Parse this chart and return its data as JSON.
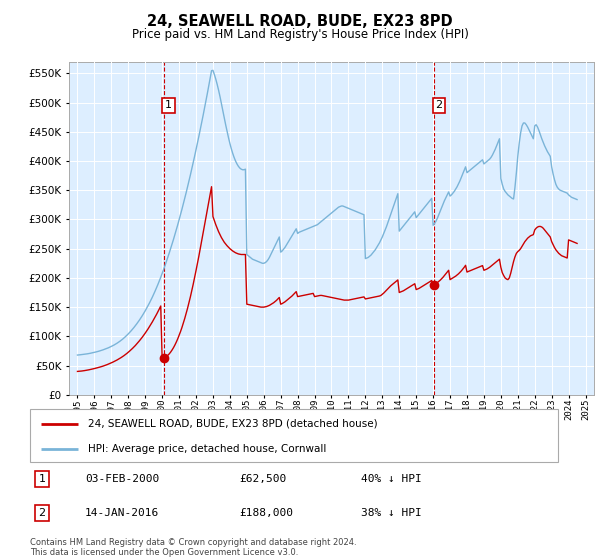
{
  "title": "24, SEAWELL ROAD, BUDE, EX23 8PD",
  "subtitle": "Price paid vs. HM Land Registry's House Price Index (HPI)",
  "hpi_label": "HPI: Average price, detached house, Cornwall",
  "property_label": "24, SEAWELL ROAD, BUDE, EX23 8PD (detached house)",
  "footnote": "Contains HM Land Registry data © Crown copyright and database right 2024.\nThis data is licensed under the Open Government Licence v3.0.",
  "sale1": {
    "date": "03-FEB-2000",
    "price": 62500,
    "pct": "40% ↓ HPI",
    "x": 2000.09
  },
  "sale2": {
    "date": "14-JAN-2016",
    "price": 188000,
    "pct": "38% ↓ HPI",
    "x": 2016.04
  },
  "hpi_color": "#7ab4d8",
  "sale_color": "#cc0000",
  "vline_color": "#cc0000",
  "chart_bg": "#ddeeff",
  "ylim": [
    0,
    570000
  ],
  "yticks": [
    0,
    50000,
    100000,
    150000,
    200000,
    250000,
    300000,
    350000,
    400000,
    450000,
    500000,
    550000
  ],
  "xlim": [
    1994.5,
    2025.5
  ],
  "hpi_x": [
    1995.0,
    1995.083,
    1995.167,
    1995.25,
    1995.333,
    1995.417,
    1995.5,
    1995.583,
    1995.667,
    1995.75,
    1995.833,
    1995.917,
    1996.0,
    1996.083,
    1996.167,
    1996.25,
    1996.333,
    1996.417,
    1996.5,
    1996.583,
    1996.667,
    1996.75,
    1996.833,
    1996.917,
    1997.0,
    1997.083,
    1997.167,
    1997.25,
    1997.333,
    1997.417,
    1997.5,
    1997.583,
    1997.667,
    1997.75,
    1997.833,
    1997.917,
    1998.0,
    1998.083,
    1998.167,
    1998.25,
    1998.333,
    1998.417,
    1998.5,
    1998.583,
    1998.667,
    1998.75,
    1998.833,
    1998.917,
    1999.0,
    1999.083,
    1999.167,
    1999.25,
    1999.333,
    1999.417,
    1999.5,
    1999.583,
    1999.667,
    1999.75,
    1999.833,
    1999.917,
    2000.0,
    2000.083,
    2000.167,
    2000.25,
    2000.333,
    2000.417,
    2000.5,
    2000.583,
    2000.667,
    2000.75,
    2000.833,
    2000.917,
    2001.0,
    2001.083,
    2001.167,
    2001.25,
    2001.333,
    2001.417,
    2001.5,
    2001.583,
    2001.667,
    2001.75,
    2001.833,
    2001.917,
    2002.0,
    2002.083,
    2002.167,
    2002.25,
    2002.333,
    2002.417,
    2002.5,
    2002.583,
    2002.667,
    2002.75,
    2002.833,
    2002.917,
    2003.0,
    2003.083,
    2003.167,
    2003.25,
    2003.333,
    2003.417,
    2003.5,
    2003.583,
    2003.667,
    2003.75,
    2003.833,
    2003.917,
    2004.0,
    2004.083,
    2004.167,
    2004.25,
    2004.333,
    2004.417,
    2004.5,
    2004.583,
    2004.667,
    2004.75,
    2004.833,
    2004.917,
    2005.0,
    2005.083,
    2005.167,
    2005.25,
    2005.333,
    2005.417,
    2005.5,
    2005.583,
    2005.667,
    2005.75,
    2005.833,
    2005.917,
    2006.0,
    2006.083,
    2006.167,
    2006.25,
    2006.333,
    2006.417,
    2006.5,
    2006.583,
    2006.667,
    2006.75,
    2006.833,
    2006.917,
    2007.0,
    2007.083,
    2007.167,
    2007.25,
    2007.333,
    2007.417,
    2007.5,
    2007.583,
    2007.667,
    2007.75,
    2007.833,
    2007.917,
    2008.0,
    2008.083,
    2008.167,
    2008.25,
    2008.333,
    2008.417,
    2008.5,
    2008.583,
    2008.667,
    2008.75,
    2008.833,
    2008.917,
    2009.0,
    2009.083,
    2009.167,
    2009.25,
    2009.333,
    2009.417,
    2009.5,
    2009.583,
    2009.667,
    2009.75,
    2009.833,
    2009.917,
    2010.0,
    2010.083,
    2010.167,
    2010.25,
    2010.333,
    2010.417,
    2010.5,
    2010.583,
    2010.667,
    2010.75,
    2010.833,
    2010.917,
    2011.0,
    2011.083,
    2011.167,
    2011.25,
    2011.333,
    2011.417,
    2011.5,
    2011.583,
    2011.667,
    2011.75,
    2011.833,
    2011.917,
    2012.0,
    2012.083,
    2012.167,
    2012.25,
    2012.333,
    2012.417,
    2012.5,
    2012.583,
    2012.667,
    2012.75,
    2012.833,
    2012.917,
    2013.0,
    2013.083,
    2013.167,
    2013.25,
    2013.333,
    2013.417,
    2013.5,
    2013.583,
    2013.667,
    2013.75,
    2013.833,
    2013.917,
    2014.0,
    2014.083,
    2014.167,
    2014.25,
    2014.333,
    2014.417,
    2014.5,
    2014.583,
    2014.667,
    2014.75,
    2014.833,
    2014.917,
    2015.0,
    2015.083,
    2015.167,
    2015.25,
    2015.333,
    2015.417,
    2015.5,
    2015.583,
    2015.667,
    2015.75,
    2015.833,
    2015.917,
    2016.0,
    2016.083,
    2016.167,
    2016.25,
    2016.333,
    2016.417,
    2016.5,
    2016.583,
    2016.667,
    2016.75,
    2016.833,
    2016.917,
    2017.0,
    2017.083,
    2017.167,
    2017.25,
    2017.333,
    2017.417,
    2017.5,
    2017.583,
    2017.667,
    2017.75,
    2017.833,
    2017.917,
    2018.0,
    2018.083,
    2018.167,
    2018.25,
    2018.333,
    2018.417,
    2018.5,
    2018.583,
    2018.667,
    2018.75,
    2018.833,
    2018.917,
    2019.0,
    2019.083,
    2019.167,
    2019.25,
    2019.333,
    2019.417,
    2019.5,
    2019.583,
    2019.667,
    2019.75,
    2019.833,
    2019.917,
    2020.0,
    2020.083,
    2020.167,
    2020.25,
    2020.333,
    2020.417,
    2020.5,
    2020.583,
    2020.667,
    2020.75,
    2020.833,
    2020.917,
    2021.0,
    2021.083,
    2021.167,
    2021.25,
    2021.333,
    2021.417,
    2021.5,
    2021.583,
    2021.667,
    2021.75,
    2021.833,
    2021.917,
    2022.0,
    2022.083,
    2022.167,
    2022.25,
    2022.333,
    2022.417,
    2022.5,
    2022.583,
    2022.667,
    2022.75,
    2022.833,
    2022.917,
    2023.0,
    2023.083,
    2023.167,
    2023.25,
    2023.333,
    2023.417,
    2023.5,
    2023.583,
    2023.667,
    2023.75,
    2023.833,
    2023.917,
    2024.0,
    2024.083,
    2024.167,
    2024.25,
    2024.333,
    2024.417,
    2024.5
  ],
  "hpi_y": [
    68000,
    68200,
    68500,
    68800,
    69100,
    69400,
    69700,
    70100,
    70500,
    71000,
    71500,
    72000,
    72600,
    73200,
    73800,
    74500,
    75200,
    76000,
    76800,
    77700,
    78600,
    79500,
    80500,
    81600,
    82800,
    84000,
    85300,
    86700,
    88200,
    89800,
    91500,
    93300,
    95200,
    97300,
    99500,
    101800,
    104200,
    106700,
    109400,
    112200,
    115100,
    118200,
    121400,
    124700,
    128200,
    131800,
    135600,
    139600,
    143700,
    148000,
    152400,
    157000,
    161800,
    166800,
    172000,
    177400,
    183000,
    188800,
    194800,
    201000,
    207400,
    214000,
    220800,
    227800,
    235000,
    242400,
    249900,
    257700,
    265600,
    273700,
    282000,
    290500,
    299200,
    308100,
    317200,
    326500,
    336000,
    345700,
    355600,
    365700,
    376000,
    386500,
    397200,
    408100,
    419200,
    430500,
    442000,
    453700,
    465600,
    477700,
    490000,
    502500,
    515200,
    528100,
    541200,
    554500,
    555000,
    548000,
    540000,
    531000,
    521000,
    510000,
    498000,
    486000,
    474000,
    462000,
    451000,
    440000,
    430000,
    421000,
    413000,
    406000,
    400000,
    395000,
    391000,
    388000,
    386000,
    385000,
    385000,
    386000,
    240000,
    238000,
    236000,
    234000,
    232000,
    231000,
    230000,
    229000,
    228000,
    227000,
    226000,
    225000,
    225000,
    226000,
    228000,
    231000,
    235000,
    240000,
    245000,
    250000,
    255000,
    260000,
    265000,
    270000,
    244000,
    246000,
    249000,
    252000,
    256000,
    260000,
    264000,
    268000,
    272000,
    276000,
    280000,
    284000,
    276000,
    278000,
    279000,
    280000,
    281000,
    282000,
    283000,
    284000,
    285000,
    286000,
    287000,
    288000,
    289000,
    290000,
    291000,
    293000,
    295000,
    297000,
    299000,
    301000,
    303000,
    305000,
    307000,
    309000,
    311000,
    313000,
    315000,
    317000,
    319000,
    321000,
    322000,
    323000,
    323000,
    322000,
    321000,
    320000,
    319000,
    318000,
    317000,
    316000,
    315000,
    314000,
    313000,
    312000,
    311000,
    310000,
    309000,
    308000,
    233000,
    234000,
    235000,
    237000,
    239000,
    242000,
    245000,
    248000,
    252000,
    256000,
    260000,
    265000,
    270000,
    276000,
    282000,
    288000,
    295000,
    302000,
    309000,
    316000,
    323000,
    330000,
    337000,
    344000,
    280000,
    283000,
    286000,
    289000,
    292000,
    295000,
    298000,
    301000,
    304000,
    307000,
    310000,
    313000,
    303000,
    306000,
    309000,
    312000,
    315000,
    318000,
    321000,
    324000,
    327000,
    330000,
    333000,
    336000,
    290000,
    293000,
    297000,
    302000,
    308000,
    314000,
    320000,
    326000,
    332000,
    337000,
    342000,
    347000,
    340000,
    342000,
    345000,
    348000,
    352000,
    356000,
    361000,
    366000,
    372000,
    378000,
    384000,
    390000,
    380000,
    382000,
    384000,
    386000,
    388000,
    390000,
    392000,
    394000,
    396000,
    398000,
    400000,
    402000,
    395000,
    397000,
    399000,
    401000,
    403000,
    406000,
    410000,
    415000,
    420000,
    426000,
    432000,
    438000,
    370000,
    360000,
    352000,
    348000,
    345000,
    342000,
    340000,
    338000,
    336000,
    335000,
    355000,
    380000,
    408000,
    430000,
    448000,
    460000,
    465000,
    465000,
    462000,
    458000,
    453000,
    448000,
    443000,
    438000,
    460000,
    462000,
    458000,
    452000,
    445000,
    438000,
    432000,
    426000,
    421000,
    416000,
    412000,
    408000,
    390000,
    378000,
    368000,
    360000,
    355000,
    352000,
    350000,
    349000,
    348000,
    347000,
    346000,
    345000,
    342000,
    340000,
    338000,
    337000,
    336000,
    335000,
    334000,
    333000,
    332000,
    331000,
    330000,
    329000,
    325000,
    322000,
    320000,
    318000,
    317000,
    316000,
    315000
  ],
  "red_x": [
    1995.0,
    1995.083,
    1995.167,
    1995.25,
    1995.333,
    1995.417,
    1995.5,
    1995.583,
    1995.667,
    1995.75,
    1995.833,
    1995.917,
    1996.0,
    1996.083,
    1996.167,
    1996.25,
    1996.333,
    1996.417,
    1996.5,
    1996.583,
    1996.667,
    1996.75,
    1996.833,
    1996.917,
    1997.0,
    1997.083,
    1997.167,
    1997.25,
    1997.333,
    1997.417,
    1997.5,
    1997.583,
    1997.667,
    1997.75,
    1997.833,
    1997.917,
    1998.0,
    1998.083,
    1998.167,
    1998.25,
    1998.333,
    1998.417,
    1998.5,
    1998.583,
    1998.667,
    1998.75,
    1998.833,
    1998.917,
    1999.0,
    1999.083,
    1999.167,
    1999.25,
    1999.333,
    1999.417,
    1999.5,
    1999.583,
    1999.667,
    1999.75,
    1999.833,
    1999.917,
    2000.0,
    2000.083,
    2000.167,
    2000.25,
    2000.333,
    2000.417,
    2000.5,
    2000.583,
    2000.667,
    2000.75,
    2000.833,
    2000.917,
    2001.0,
    2001.083,
    2001.167,
    2001.25,
    2001.333,
    2001.417,
    2001.5,
    2001.583,
    2001.667,
    2001.75,
    2001.833,
    2001.917,
    2002.0,
    2002.083,
    2002.167,
    2002.25,
    2002.333,
    2002.417,
    2002.5,
    2002.583,
    2002.667,
    2002.75,
    2002.833,
    2002.917,
    2003.0,
    2003.083,
    2003.167,
    2003.25,
    2003.333,
    2003.417,
    2003.5,
    2003.583,
    2003.667,
    2003.75,
    2003.833,
    2003.917,
    2004.0,
    2004.083,
    2004.167,
    2004.25,
    2004.333,
    2004.417,
    2004.5,
    2004.583,
    2004.667,
    2004.75,
    2004.833,
    2004.917,
    2005.0,
    2005.083,
    2005.167,
    2005.25,
    2005.333,
    2005.417,
    2005.5,
    2005.583,
    2005.667,
    2005.75,
    2005.833,
    2005.917,
    2006.0,
    2006.083,
    2006.167,
    2006.25,
    2006.333,
    2006.417,
    2006.5,
    2006.583,
    2006.667,
    2006.75,
    2006.833,
    2006.917,
    2007.0,
    2007.083,
    2007.167,
    2007.25,
    2007.333,
    2007.417,
    2007.5,
    2007.583,
    2007.667,
    2007.75,
    2007.833,
    2007.917,
    2008.0,
    2008.083,
    2008.167,
    2008.25,
    2008.333,
    2008.417,
    2008.5,
    2008.583,
    2008.667,
    2008.75,
    2008.833,
    2008.917,
    2009.0,
    2009.083,
    2009.167,
    2009.25,
    2009.333,
    2009.417,
    2009.5,
    2009.583,
    2009.667,
    2009.75,
    2009.833,
    2009.917,
    2010.0,
    2010.083,
    2010.167,
    2010.25,
    2010.333,
    2010.417,
    2010.5,
    2010.583,
    2010.667,
    2010.75,
    2010.833,
    2010.917,
    2011.0,
    2011.083,
    2011.167,
    2011.25,
    2011.333,
    2011.417,
    2011.5,
    2011.583,
    2011.667,
    2011.75,
    2011.833,
    2011.917,
    2012.0,
    2012.083,
    2012.167,
    2012.25,
    2012.333,
    2012.417,
    2012.5,
    2012.583,
    2012.667,
    2012.75,
    2012.833,
    2012.917,
    2013.0,
    2013.083,
    2013.167,
    2013.25,
    2013.333,
    2013.417,
    2013.5,
    2013.583,
    2013.667,
    2013.75,
    2013.833,
    2013.917,
    2014.0,
    2014.083,
    2014.167,
    2014.25,
    2014.333,
    2014.417,
    2014.5,
    2014.583,
    2014.667,
    2014.75,
    2014.833,
    2014.917,
    2015.0,
    2015.083,
    2015.167,
    2015.25,
    2015.333,
    2015.417,
    2015.5,
    2015.583,
    2015.667,
    2015.75,
    2015.833,
    2015.917,
    2016.0,
    2016.083,
    2016.167,
    2016.25,
    2016.333,
    2016.417,
    2016.5,
    2016.583,
    2016.667,
    2016.75,
    2016.833,
    2016.917,
    2017.0,
    2017.083,
    2017.167,
    2017.25,
    2017.333,
    2017.417,
    2017.5,
    2017.583,
    2017.667,
    2017.75,
    2017.833,
    2017.917,
    2018.0,
    2018.083,
    2018.167,
    2018.25,
    2018.333,
    2018.417,
    2018.5,
    2018.583,
    2018.667,
    2018.75,
    2018.833,
    2018.917,
    2019.0,
    2019.083,
    2019.167,
    2019.25,
    2019.333,
    2019.417,
    2019.5,
    2019.583,
    2019.667,
    2019.75,
    2019.833,
    2019.917,
    2020.0,
    2020.083,
    2020.167,
    2020.25,
    2020.333,
    2020.417,
    2020.5,
    2020.583,
    2020.667,
    2020.75,
    2020.833,
    2020.917,
    2021.0,
    2021.083,
    2021.167,
    2021.25,
    2021.333,
    2021.417,
    2021.5,
    2021.583,
    2021.667,
    2021.75,
    2021.833,
    2021.917,
    2022.0,
    2022.083,
    2022.167,
    2022.25,
    2022.333,
    2022.417,
    2022.5,
    2022.583,
    2022.667,
    2022.75,
    2022.833,
    2022.917,
    2023.0,
    2023.083,
    2023.167,
    2023.25,
    2023.333,
    2023.417,
    2023.5,
    2023.583,
    2023.667,
    2023.75,
    2023.833,
    2023.917,
    2024.0,
    2024.083,
    2024.167,
    2024.25,
    2024.333,
    2024.417,
    2024.5
  ],
  "red_y": [
    40000,
    40200,
    40400,
    40700,
    41000,
    41400,
    41800,
    42200,
    42700,
    43200,
    43700,
    44300,
    44900,
    45500,
    46100,
    46800,
    47500,
    48200,
    49000,
    49800,
    50700,
    51600,
    52600,
    53600,
    54700,
    55800,
    57000,
    58200,
    59500,
    60900,
    62300,
    63800,
    65400,
    67100,
    68900,
    70800,
    72800,
    74900,
    77100,
    79400,
    81800,
    84300,
    87000,
    89800,
    92700,
    95700,
    98800,
    102100,
    105500,
    109000,
    112700,
    116500,
    120400,
    124500,
    128700,
    133000,
    137500,
    142100,
    146900,
    151900,
    62500,
    63000,
    64000,
    65500,
    67500,
    70000,
    73000,
    76500,
    80500,
    85000,
    90000,
    95500,
    101500,
    108000,
    115000,
    122500,
    130500,
    139000,
    148000,
    157500,
    167500,
    178000,
    189000,
    200500,
    212500,
    224500,
    237000,
    250000,
    263000,
    276000,
    289500,
    303000,
    316500,
    330000,
    343000,
    356000,
    305000,
    298000,
    291000,
    285000,
    279000,
    274000,
    269000,
    265000,
    261000,
    258000,
    255000,
    252500,
    250000,
    248000,
    246000,
    244500,
    243000,
    242000,
    241000,
    240500,
    240000,
    240000,
    240000,
    240000,
    155000,
    154500,
    154000,
    153500,
    153000,
    152500,
    152000,
    151500,
    151000,
    150500,
    150000,
    150000,
    150000,
    150500,
    151000,
    152000,
    153000,
    154500,
    156000,
    157500,
    159500,
    161500,
    164000,
    166500,
    155000,
    156000,
    157500,
    159000,
    161000,
    163000,
    165000,
    167000,
    169000,
    171500,
    174000,
    176500,
    168000,
    168500,
    169000,
    169500,
    170000,
    170500,
    171000,
    171500,
    172000,
    172500,
    173000,
    173500,
    168000,
    168500,
    169000,
    169500,
    170000,
    170000,
    169500,
    169000,
    168500,
    168000,
    167500,
    167000,
    166500,
    166000,
    165500,
    165000,
    164500,
    164000,
    163500,
    163000,
    162500,
    162000,
    162000,
    162000,
    162000,
    162500,
    163000,
    163500,
    164000,
    164500,
    165000,
    165500,
    166000,
    166500,
    167000,
    167500,
    164000,
    164500,
    165000,
    165500,
    166000,
    166500,
    167000,
    167500,
    168000,
    168500,
    169000,
    170000,
    172000,
    174000,
    176500,
    179000,
    181500,
    184000,
    186500,
    188500,
    190500,
    192500,
    194500,
    196500,
    175000,
    176000,
    177000,
    178000,
    179500,
    181000,
    182500,
    184000,
    185500,
    187000,
    188500,
    190000,
    180000,
    181000,
    182000,
    183500,
    185000,
    186500,
    188000,
    189500,
    191000,
    192500,
    194000,
    195500,
    188000,
    189000,
    190500,
    192000,
    194000,
    196000,
    198500,
    201000,
    204000,
    207000,
    210000,
    213000,
    197000,
    198500,
    200000,
    201500,
    203000,
    205000,
    207000,
    209500,
    212000,
    215000,
    218000,
    221500,
    210000,
    211000,
    212000,
    213000,
    214000,
    215000,
    216000,
    217000,
    218000,
    219000,
    220000,
    221000,
    213000,
    214000,
    215000,
    216500,
    218000,
    220000,
    222000,
    224000,
    226000,
    228000,
    230000,
    232000,
    218000,
    209000,
    204000,
    200000,
    198000,
    197000,
    200000,
    208000,
    218000,
    228000,
    236000,
    242000,
    245000,
    247000,
    250000,
    254000,
    258000,
    262000,
    265000,
    268000,
    270000,
    272000,
    273000,
    274000,
    282000,
    285000,
    287000,
    288000,
    288000,
    287000,
    285000,
    282000,
    279000,
    276000,
    273000,
    270000,
    262000,
    257000,
    252000,
    248000,
    245000,
    242000,
    240000,
    238000,
    237000,
    236000,
    235000,
    234000,
    265000,
    264000,
    263000,
    262000,
    261000,
    260000,
    259000,
    258000,
    257000,
    256000,
    255000,
    254000,
    253000,
    252000,
    251000,
    250000,
    249000,
    248000,
    247000
  ]
}
